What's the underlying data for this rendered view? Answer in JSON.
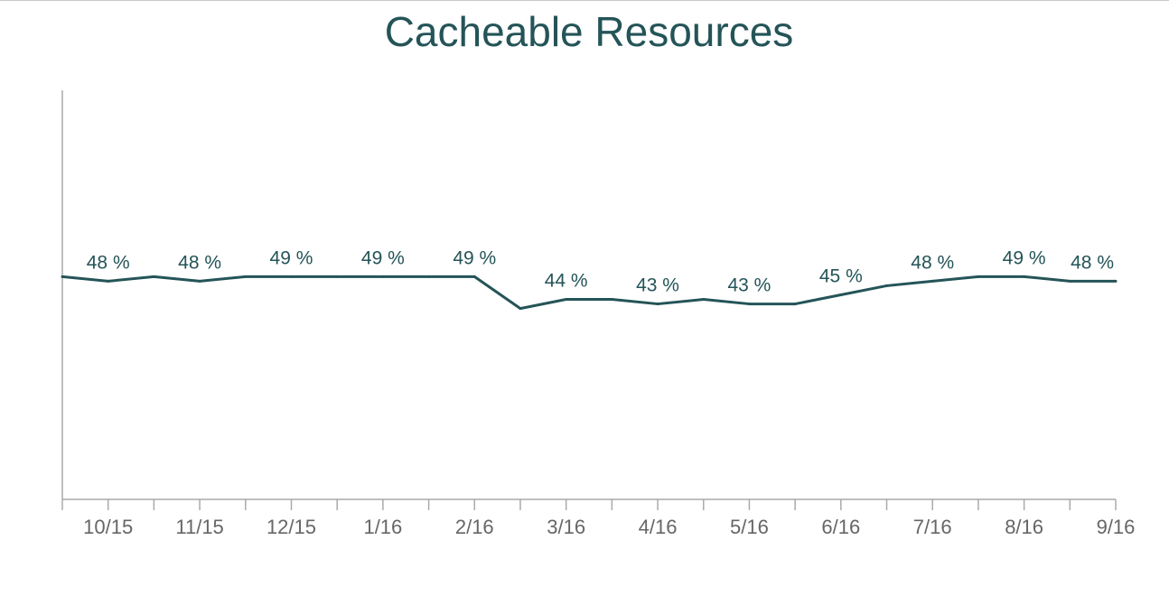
{
  "chart_data": {
    "type": "line",
    "title": "Cacheable Resources",
    "xlabel": "",
    "ylabel": "",
    "x": [
      "",
      "10/15",
      "",
      "11/15",
      "",
      "12/15",
      "",
      "1/16",
      "",
      "2/16",
      "",
      "3/16",
      "",
      "4/16",
      "",
      "5/16",
      "",
      "6/16",
      "",
      "7/16",
      "",
      "8/16",
      "",
      "9/16"
    ],
    "series": [
      {
        "values": [
          49,
          48,
          49,
          48,
          49,
          49,
          49,
          49,
          49,
          49,
          42,
          44,
          44,
          43,
          44,
          43,
          43,
          45,
          47,
          48,
          49,
          49,
          48,
          48
        ],
        "labels": [
          "",
          "48 %",
          "",
          "48 %",
          "",
          "49 %",
          "",
          "49 %",
          "",
          "49 %",
          "",
          "44 %",
          "",
          "43 %",
          "",
          "43 %",
          "",
          "45 %",
          "",
          "48 %",
          "",
          "49 %",
          "",
          "48 %"
        ]
      }
    ],
    "ylim": [
      0,
      90
    ],
    "grid": false,
    "colors": {
      "line": "#245458",
      "axis": "#aaaaaa",
      "title": "#245458",
      "tick_text": "#666666"
    }
  }
}
